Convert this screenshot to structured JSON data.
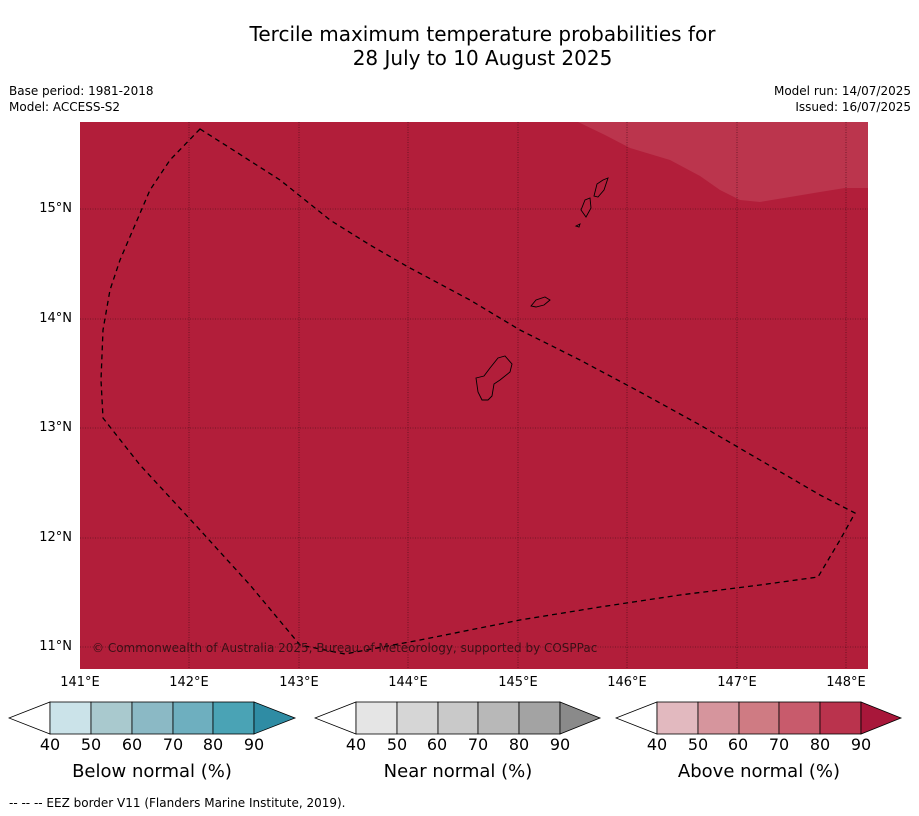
{
  "title": {
    "line1": "Tercile maximum temperature probabilities for",
    "line2": "28 July to 10 August 2025"
  },
  "meta": {
    "base_period": "Base period: 1981-2018",
    "model": "Model: ACCESS-S2",
    "model_run": "Model run: 14/07/2025",
    "issued": "Issued: 16/07/2025"
  },
  "map": {
    "lat_labels": [
      "15°N",
      "14°N",
      "13°N",
      "12°N",
      "11°N"
    ],
    "lon_labels": [
      "141°E",
      "142°E",
      "143°E",
      "144°E",
      "145°E",
      "146°E",
      "147°E",
      "148°E"
    ],
    "copyright": "© Commonwealth of Australia 2025, Bureau of Meteorology, supported by COSPPac",
    "background_category": "Above normal 80-90%",
    "background_color": "#b21e3a",
    "lighter_region_color": "#bb354d"
  },
  "colorbars": [
    {
      "name": "below",
      "title": "Below normal (%)",
      "ticks": [
        "40",
        "50",
        "60",
        "70",
        "80",
        "90"
      ],
      "colors": [
        "#cbe3e9",
        "#a9c9ce",
        "#8bb9c5",
        "#6eafbf",
        "#4aa3b5",
        "#2f8ca4"
      ]
    },
    {
      "name": "near",
      "title": "Near normal (%)",
      "ticks": [
        "40",
        "50",
        "60",
        "70",
        "80",
        "90"
      ],
      "colors": [
        "#e5e5e5",
        "#d6d6d6",
        "#c9c9c9",
        "#b8b8b8",
        "#a3a3a3",
        "#8a8a8a"
      ]
    },
    {
      "name": "above",
      "title": "Above normal (%)",
      "ticks": [
        "40",
        "50",
        "60",
        "70",
        "80",
        "90"
      ],
      "colors": [
        "#e2b9bf",
        "#d6959d",
        "#cf7b83",
        "#c85b6c",
        "#ba334d",
        "#a8173a"
      ]
    }
  ],
  "footer": "--  --  -- EEZ border V11 (Flanders Marine Institute, 2019)."
}
